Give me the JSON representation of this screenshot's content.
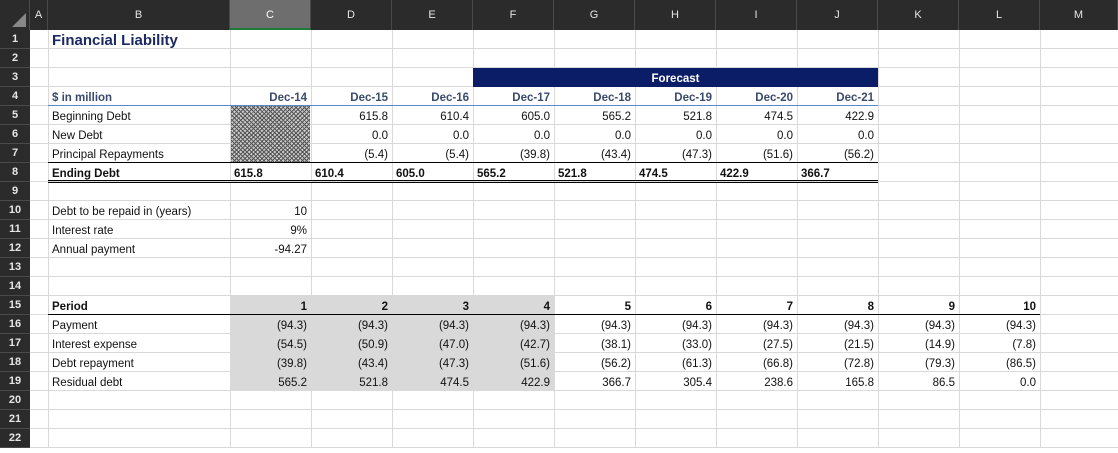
{
  "columns": [
    "A",
    "B",
    "C",
    "D",
    "E",
    "F",
    "G",
    "H",
    "I",
    "J",
    "K",
    "L",
    "M"
  ],
  "selected_column": "C",
  "rows": [
    "1",
    "2",
    "3",
    "4",
    "5",
    "6",
    "7",
    "8",
    "9",
    "10",
    "11",
    "12",
    "13",
    "14",
    "15",
    "16",
    "17",
    "18",
    "19",
    "20",
    "21",
    "22"
  ],
  "title": "Financial Liability",
  "forecast_label": "Forecast",
  "units_label": "$ in million",
  "periods_header": [
    "Dec-14",
    "Dec-15",
    "Dec-16",
    "Dec-17",
    "Dec-18",
    "Dec-19",
    "Dec-20",
    "Dec-21"
  ],
  "debt_table": [
    {
      "label": "Beginning Debt",
      "values": [
        "",
        "615.8",
        "610.4",
        "605.0",
        "565.2",
        "521.8",
        "474.5",
        "422.9"
      ]
    },
    {
      "label": "New Debt",
      "values": [
        "",
        "0.0",
        "0.0",
        "0.0",
        "0.0",
        "0.0",
        "0.0",
        "0.0"
      ]
    },
    {
      "label": "Principal Repayments",
      "values": [
        "",
        "(5.4)",
        "(5.4)",
        "(39.8)",
        "(43.4)",
        "(47.3)",
        "(51.6)",
        "(56.2)"
      ]
    },
    {
      "label": "Ending Debt",
      "values": [
        "615.8",
        "610.4",
        "605.0",
        "565.2",
        "521.8",
        "474.5",
        "422.9",
        "366.7"
      ]
    }
  ],
  "assumptions": [
    {
      "label": "Debt to be repaid in (years)",
      "value": "10"
    },
    {
      "label": "Interest rate",
      "value": "9%"
    },
    {
      "label": "Annual payment",
      "value": "-94.27"
    }
  ],
  "schedule": {
    "header_label": "Period",
    "periods": [
      "1",
      "2",
      "3",
      "4",
      "5",
      "6",
      "7",
      "8",
      "9",
      "10"
    ],
    "rows": [
      {
        "label": "Payment",
        "values": [
          "(94.3)",
          "(94.3)",
          "(94.3)",
          "(94.3)",
          "(94.3)",
          "(94.3)",
          "(94.3)",
          "(94.3)",
          "(94.3)",
          "(94.3)"
        ]
      },
      {
        "label": "Interest expense",
        "values": [
          "(54.5)",
          "(50.9)",
          "(47.0)",
          "(42.7)",
          "(38.1)",
          "(33.0)",
          "(27.5)",
          "(21.5)",
          "(14.9)",
          "(7.8)"
        ]
      },
      {
        "label": "Debt repayment",
        "values": [
          "(39.8)",
          "(43.4)",
          "(47.3)",
          "(51.6)",
          "(56.2)",
          "(61.3)",
          "(66.8)",
          "(72.8)",
          "(79.3)",
          "(86.5)"
        ]
      },
      {
        "label": "Residual debt",
        "values": [
          "565.2",
          "521.8",
          "474.5",
          "422.9",
          "366.7",
          "305.4",
          "238.6",
          "165.8",
          "86.5",
          "0.0"
        ]
      }
    ]
  }
}
